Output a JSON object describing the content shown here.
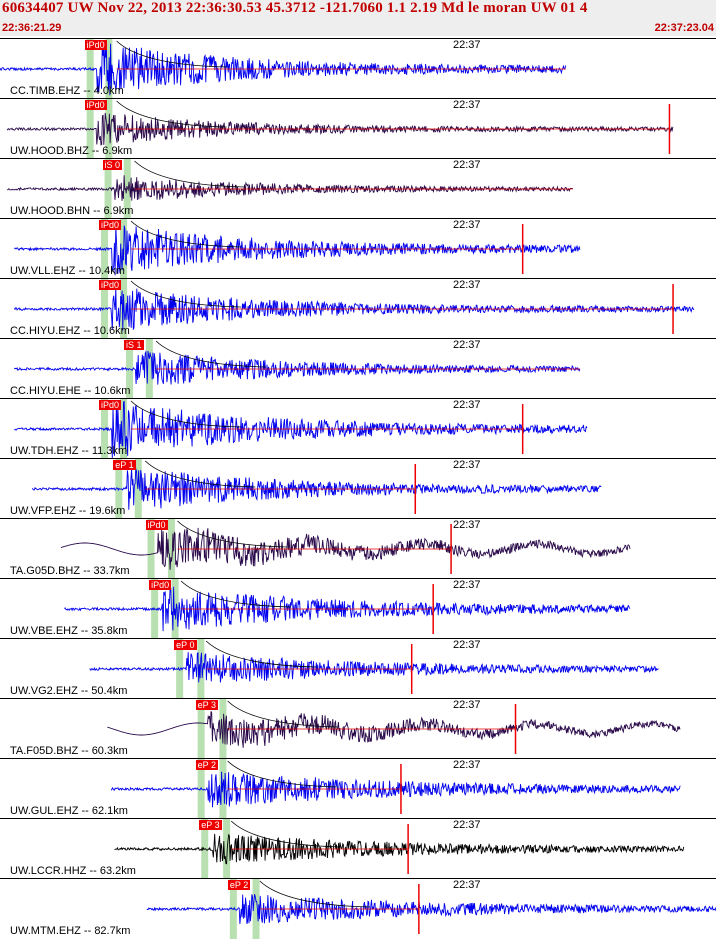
{
  "header": {
    "title": "60634407 UW Nov 22, 2013 22:36:30.53    45.3712 -121.7060  1.1 2.19 Md le moran UW 01   4",
    "start_time": "22:36:21.29",
    "end_time": "22:37:23.04"
  },
  "colors": {
    "header_bg": "#eeeeee",
    "header_text": "#c00000",
    "trace_blue": "#0000ee",
    "trace_dark": "#2a0a4a",
    "trace_black": "#000000",
    "pick_red": "#ee0000",
    "window_green": "#b8e0b0"
  },
  "panels": [
    {
      "station": "CC.TIMB.EHZ -- 4.0km",
      "tick_label": "22:37",
      "pick": "iPd0",
      "pick_pos": 0.135,
      "color": "blue",
      "start": 0.0,
      "end": 0.79,
      "amp": 0.9,
      "mark": null
    },
    {
      "station": "UW.HOOD.BHZ -- 6.9km",
      "tick_label": "22:37",
      "pick": "iPd0",
      "pick_pos": 0.135,
      "color": "dark",
      "start": 0.01,
      "end": 0.94,
      "amp": 0.55,
      "mark": 0.935
    },
    {
      "station": "UW.HOOD.BHN -- 6.9km",
      "tick_label": "22:37",
      "pick": "iS 0",
      "pick_pos": 0.16,
      "color": "dark",
      "start": 0.01,
      "end": 0.8,
      "amp": 0.45,
      "mark": null
    },
    {
      "station": "UW.VLL.EHZ -- 10.4km",
      "tick_label": "22:37",
      "pick": "iPd0",
      "pick_pos": 0.155,
      "color": "blue",
      "start": 0.02,
      "end": 0.81,
      "amp": 0.85,
      "mark": 0.73
    },
    {
      "station": "CC.HIYU.EHZ -- 10.6km",
      "tick_label": "22:37",
      "pick": "iPd0",
      "pick_pos": 0.155,
      "color": "blue",
      "start": 0.02,
      "end": 0.97,
      "amp": 0.75,
      "mark": 0.94
    },
    {
      "station": "CC.HIYU.EHE -- 10.6km",
      "tick_label": "22:37",
      "pick": "iS 1",
      "pick_pos": 0.19,
      "color": "blue",
      "start": 0.02,
      "end": 0.81,
      "amp": 0.6,
      "mark": null
    },
    {
      "station": "UW.TDH.EHZ -- 11.3km",
      "tick_label": "22:37",
      "pick": "iPd0",
      "pick_pos": 0.155,
      "color": "blue",
      "start": 0.02,
      "end": 0.82,
      "amp": 0.95,
      "mark": 0.73
    },
    {
      "station": "UW.VFP.EHZ -- 19.6km",
      "tick_label": "22:37",
      "pick": "eP 1",
      "pick_pos": 0.175,
      "color": "blue",
      "start": 0.045,
      "end": 0.84,
      "amp": 0.75,
      "mark": 0.58
    },
    {
      "station": "TA.G05D.BHZ -- 33.7km",
      "tick_label": "22:37",
      "pick": "iPd0",
      "pick_pos": 0.22,
      "color": "dark",
      "start": 0.085,
      "end": 0.88,
      "amp": 0.7,
      "mark": 0.63
    },
    {
      "station": "UW.VBE.EHZ -- 35.8km",
      "tick_label": "22:37",
      "pick": "iPd0",
      "pick_pos": 0.225,
      "color": "blue",
      "start": 0.09,
      "end": 0.88,
      "amp": 0.75,
      "mark": 0.605
    },
    {
      "station": "UW.VG2.EHZ -- 50.4km",
      "tick_label": "22:37",
      "pick": "eP 0",
      "pick_pos": 0.26,
      "color": "blue",
      "start": 0.125,
      "end": 0.92,
      "amp": 0.55,
      "mark": 0.575
    },
    {
      "station": "TA.F05D.BHZ -- 60.3km",
      "tick_label": "22:37",
      "pick": "eP 3",
      "pick_pos": 0.29,
      "color": "dark",
      "start": 0.15,
      "end": 0.95,
      "amp": 0.55,
      "mark": 0.72
    },
    {
      "station": "UW.GUL.EHZ -- 62.1km",
      "tick_label": "22:37",
      "pick": "eP 2",
      "pick_pos": 0.29,
      "color": "blue",
      "start": 0.155,
      "end": 0.95,
      "amp": 0.6,
      "mark": 0.56
    },
    {
      "station": "UW.LCCR.HHZ -- 63.2km",
      "tick_label": "22:37",
      "pick": "eP 3",
      "pick_pos": 0.295,
      "color": "black",
      "start": 0.16,
      "end": 0.955,
      "amp": 0.5,
      "mark": 0.57
    },
    {
      "station": "UW.MTM.EHZ -- 82.7km",
      "tick_label": "22:37",
      "pick": "eP 2",
      "pick_pos": 0.335,
      "color": "blue",
      "start": 0.205,
      "end": 1.0,
      "amp": 0.5,
      "mark": 0.585
    }
  ]
}
